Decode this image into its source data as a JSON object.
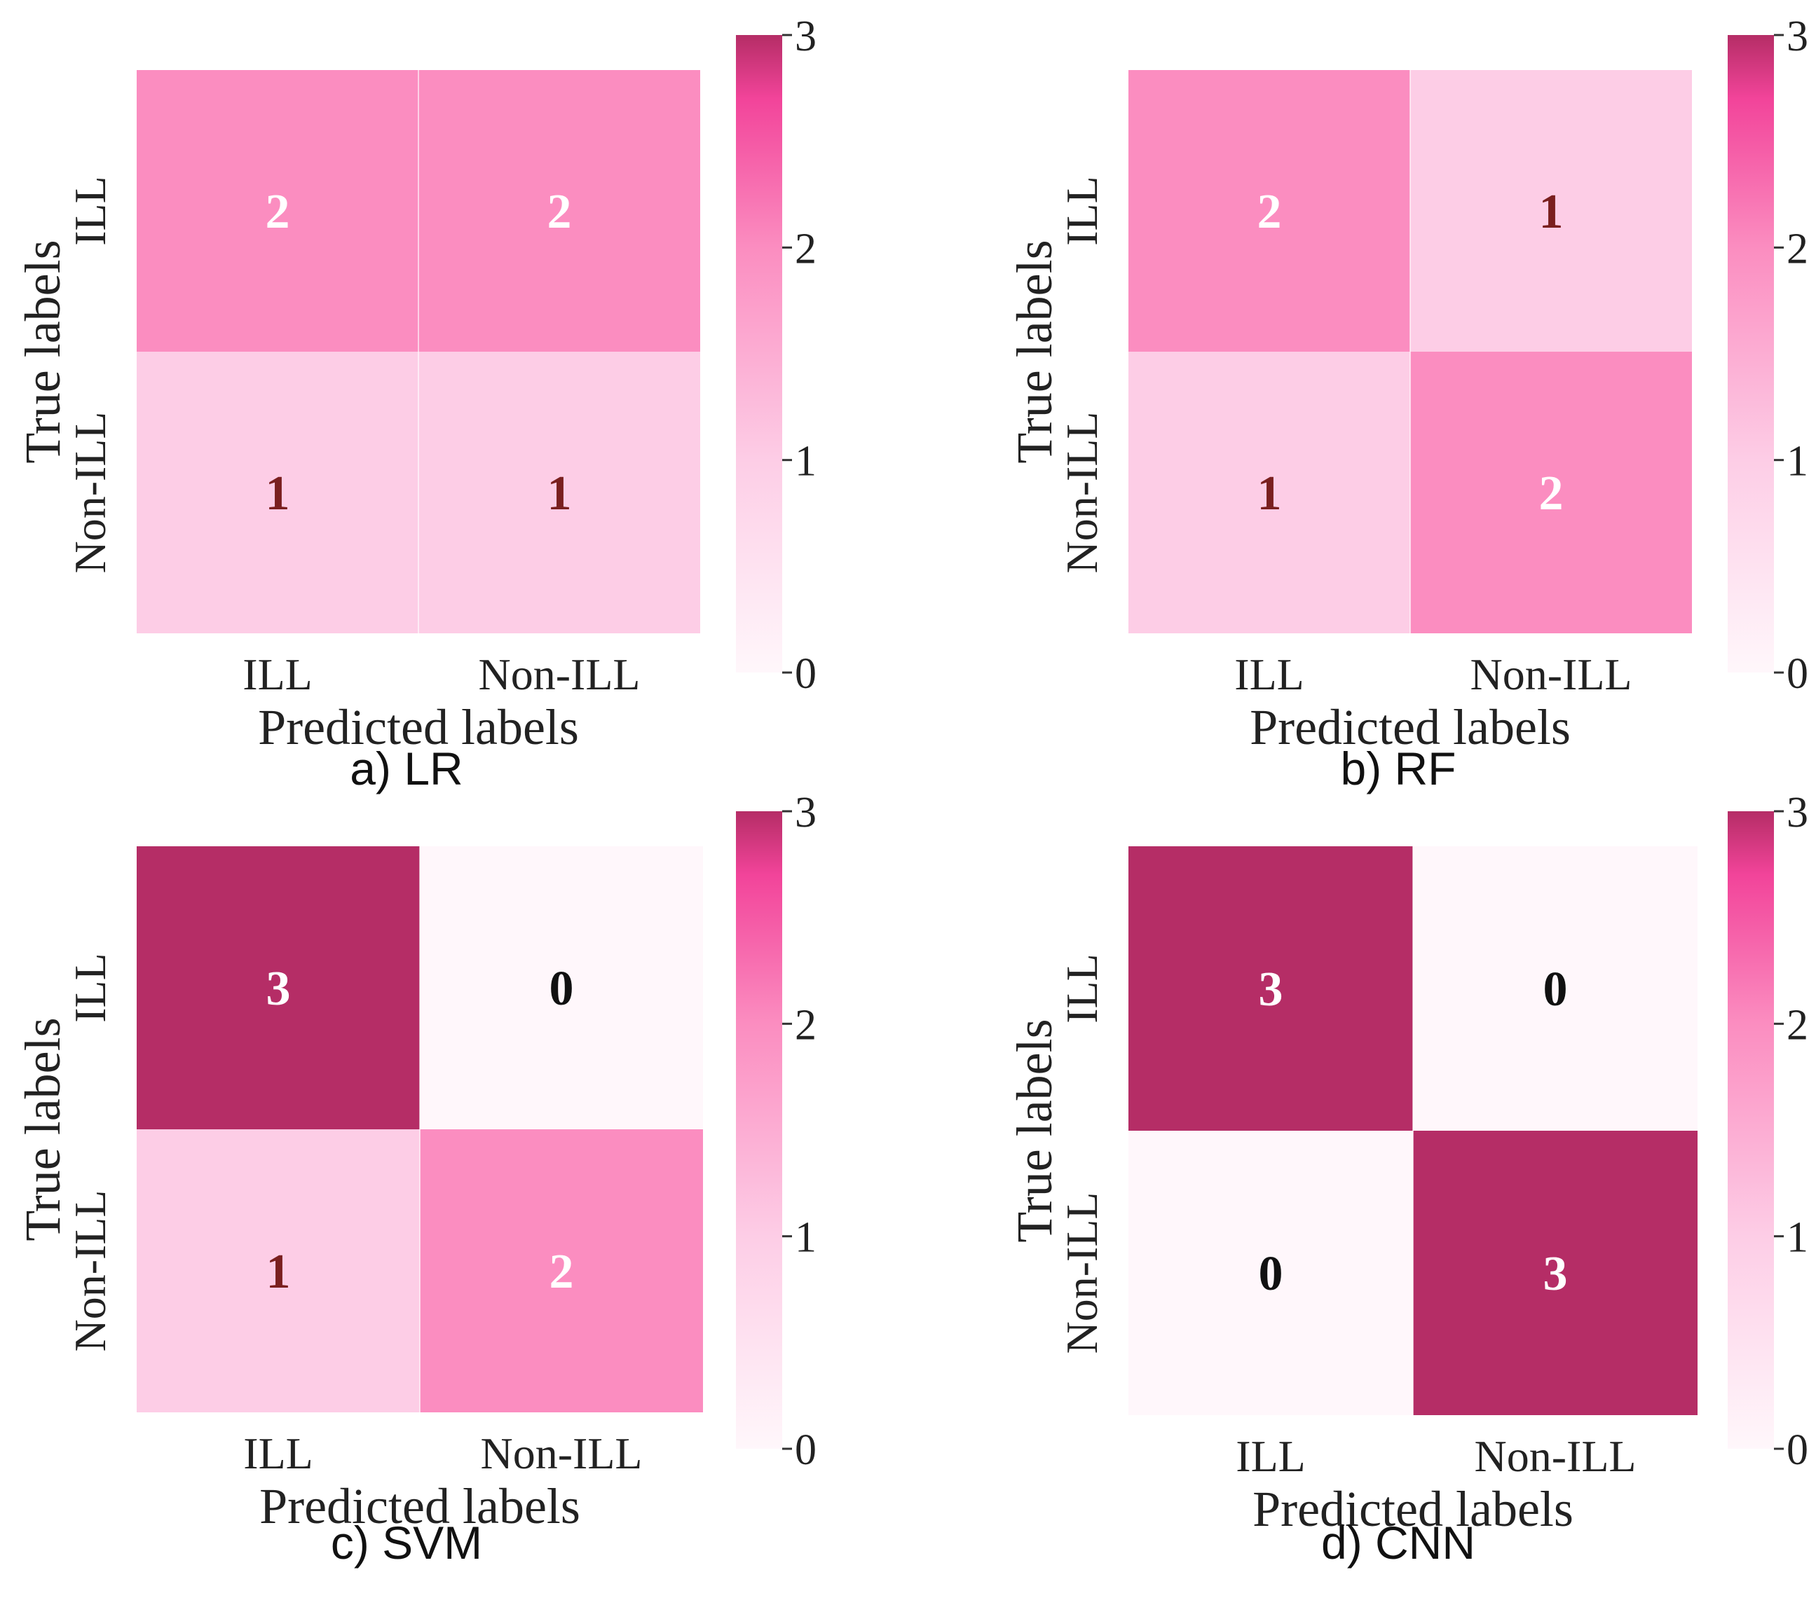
{
  "colors": {
    "c0": "#fff7fb",
    "c1": "#fdcde6",
    "c2": "#fb8dc0",
    "c3": "#b52d66",
    "light_text": "#ffffff",
    "dark_text_1": "#7a1f1f",
    "dark_text_0": "#111111"
  },
  "chart_data": [
    {
      "type": "heatmap",
      "caption": "a) LR",
      "xlabel": "Predicted labels",
      "ylabel": "True labels",
      "x_ticks": [
        "ILL",
        "Non-ILL"
      ],
      "y_ticks": [
        "ILL",
        "Non-ILL"
      ],
      "values": [
        [
          2,
          2
        ],
        [
          1,
          1
        ]
      ],
      "colorbar": {
        "min": 0,
        "max": 3,
        "ticks": [
          "0",
          "1",
          "2",
          "3"
        ]
      }
    },
    {
      "type": "heatmap",
      "caption": "b) RF",
      "xlabel": "Predicted labels",
      "ylabel": "True labels",
      "x_ticks": [
        "ILL",
        "Non-ILL"
      ],
      "y_ticks": [
        "ILL",
        "Non-ILL"
      ],
      "values": [
        [
          2,
          1
        ],
        [
          1,
          2
        ]
      ],
      "colorbar": {
        "min": 0,
        "max": 3,
        "ticks": [
          "0",
          "1",
          "2",
          "3"
        ]
      }
    },
    {
      "type": "heatmap",
      "caption": "c) SVM",
      "xlabel": "Predicted labels",
      "ylabel": "True labels",
      "x_ticks": [
        "ILL",
        "Non-ILL"
      ],
      "y_ticks": [
        "ILL",
        "Non-ILL"
      ],
      "values": [
        [
          3,
          0
        ],
        [
          1,
          2
        ]
      ],
      "colorbar": {
        "min": 0,
        "max": 3,
        "ticks": [
          "0",
          "1",
          "2",
          "3"
        ]
      }
    },
    {
      "type": "heatmap",
      "caption": "d) CNN",
      "xlabel": "Predicted labels",
      "ylabel": "True labels",
      "x_ticks": [
        "ILL",
        "Non-ILL"
      ],
      "y_ticks": [
        "ILL",
        "Non-ILL"
      ],
      "values": [
        [
          3,
          0
        ],
        [
          0,
          3
        ]
      ],
      "colorbar": {
        "min": 0,
        "max": 3,
        "ticks": [
          "0",
          "1",
          "2",
          "3"
        ]
      }
    }
  ]
}
